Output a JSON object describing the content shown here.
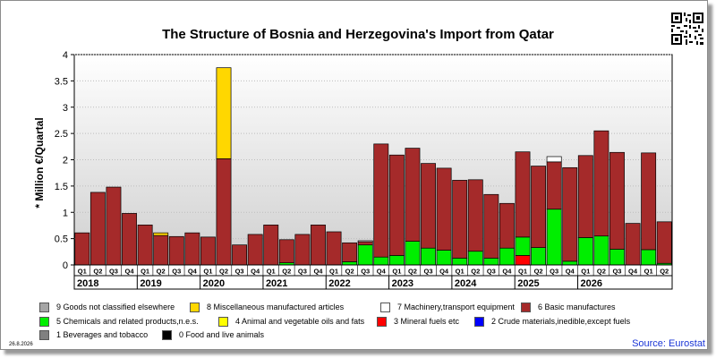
{
  "header": {
    "title": "The Structure of Bosnia and Herzegovina's Import from Qatar",
    "y_axis_label": "* Million €/Quartal",
    "qr_icon": "qr-code-icon"
  },
  "footer": {
    "date_stamp": "26.8.2026",
    "source": "Source: Eurostat"
  },
  "colors": {
    "plot_bg_top": "#ffffff",
    "plot_bg_bottom": "#cfcfcf",
    "source_text": "#1a35d6"
  },
  "legend": {
    "items": [
      {
        "label": "9 Goods not classified elsewhere",
        "color": "#a5a5a5"
      },
      {
        "label": "8 Miscellaneous manufactured articles",
        "color": "#ffd700"
      },
      {
        "label": "7 Machinery,transport equipment",
        "color": "#ffffff"
      },
      {
        "label": "6 Basic manufactures",
        "color": "#a52a2a"
      },
      {
        "label": "5 Chemicals and related products,n.e.s.",
        "color": "#00ee00"
      },
      {
        "label": "4 Animal and vegetable oils and fats",
        "color": "#ffff00"
      },
      {
        "label": "3 Mineral fuels etc",
        "color": "#ff0000"
      },
      {
        "label": "2 Crude materials,inedible,except fuels",
        "color": "#0000ff"
      },
      {
        "label": "1 Beverages and tobacco",
        "color": "#808080"
      },
      {
        "label": "0 Food and live animals",
        "color": "#000000"
      }
    ]
  },
  "chart_data": {
    "type": "bar",
    "stacked": true,
    "title": "The Structure of Bosnia and Herzegovina's Import from Qatar",
    "ylabel": "* Million €/Quartal",
    "ylim": [
      0,
      4
    ],
    "yticks": [
      "0",
      "0.5",
      "1",
      "1.5",
      "2",
      "2.5",
      "3",
      "3.5",
      "4"
    ],
    "grid": true,
    "categories": [
      "Q1",
      "Q2",
      "Q3",
      "Q4",
      "Q1",
      "Q2",
      "Q3",
      "Q4",
      "Q1",
      "Q2",
      "Q3",
      "Q4",
      "Q1",
      "Q2",
      "Q3",
      "Q4",
      "Q1",
      "Q2",
      "Q3",
      "Q4",
      "Q1",
      "Q2",
      "Q3",
      "Q4",
      "Q1",
      "Q2",
      "Q3",
      "Q4",
      "Q1",
      "Q2",
      "Q3",
      "Q4",
      "Q1",
      "Q2",
      "Q3",
      "Q4",
      "Q1",
      "Q2"
    ],
    "years": [
      {
        "label": "2018",
        "quarters": 4
      },
      {
        "label": "2019",
        "quarters": 4
      },
      {
        "label": "2020",
        "quarters": 4
      },
      {
        "label": "2021",
        "quarters": 4
      },
      {
        "label": "2022",
        "quarters": 4
      },
      {
        "label": "2023",
        "quarters": 4
      },
      {
        "label": "2024",
        "quarters": 4
      },
      {
        "label": "2025",
        "quarters": 4
      },
      {
        "label": "2026",
        "quarters": 2
      }
    ],
    "series": [
      {
        "name": "3 Mineral fuels etc",
        "color": "#ff0000",
        "values": [
          0,
          0,
          0,
          0,
          0,
          0,
          0,
          0,
          0,
          0,
          0,
          0,
          0,
          0,
          0,
          0,
          0,
          0,
          0,
          0,
          0,
          0,
          0,
          0,
          0,
          0,
          0,
          0,
          0.18,
          0,
          0,
          0,
          0,
          0,
          0,
          0,
          0,
          0
        ]
      },
      {
        "name": "5 Chemicals and related products,n.e.s.",
        "color": "#00ee00",
        "values": [
          0,
          0,
          0,
          0,
          0,
          0,
          0,
          0,
          0,
          0,
          0,
          0,
          0,
          0.04,
          0,
          0,
          0,
          0.06,
          0.38,
          0.15,
          0.18,
          0.45,
          0.32,
          0.28,
          0.13,
          0.26,
          0.13,
          0.32,
          0.35,
          0.33,
          1.06,
          0.07,
          0.52,
          0.55,
          0.3,
          0,
          0.29,
          0.03
        ]
      },
      {
        "name": "6 Basic manufactures",
        "color": "#a52a2a",
        "values": [
          0.61,
          1.38,
          1.48,
          0.98,
          0.76,
          0.56,
          0.54,
          0.61,
          0.53,
          2.02,
          0.38,
          0.58,
          0.76,
          0.44,
          0.58,
          0.76,
          0.63,
          0.36,
          0.06,
          2.15,
          1.91,
          1.77,
          1.61,
          1.56,
          1.48,
          1.36,
          1.21,
          0.85,
          1.62,
          1.55,
          0.9,
          1.78,
          1.56,
          2.0,
          1.84,
          0.79,
          1.84,
          0.79
        ]
      },
      {
        "name": "8 Miscellaneous manufactured articles",
        "color": "#ffd700",
        "values": [
          0,
          0,
          0,
          0,
          0,
          0.05,
          0,
          0,
          0,
          1.73,
          0,
          0,
          0,
          0,
          0,
          0,
          0,
          0,
          0,
          0,
          0,
          0,
          0,
          0,
          0,
          0,
          0,
          0,
          0,
          0,
          0,
          0,
          0,
          0,
          0,
          0,
          0,
          0
        ]
      },
      {
        "name": "7 Machinery,transport equipment",
        "color": "#ffffff",
        "values": [
          0,
          0,
          0,
          0,
          0,
          0,
          0,
          0,
          0,
          0,
          0,
          0,
          0,
          0,
          0,
          0,
          0,
          0,
          0.02,
          0,
          0,
          0,
          0,
          0,
          0,
          0,
          0,
          0,
          0,
          0,
          0.1,
          0,
          0,
          0,
          0,
          0,
          0,
          0
        ]
      }
    ]
  }
}
